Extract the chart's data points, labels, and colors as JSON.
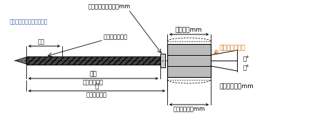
{
  "bg_color": "#ffffff",
  "line_color": "#000000",
  "orange_color": "#cc6600",
  "gray_color": "#aaaaaa",
  "dark_gray": "#555555",
  "text_color_blue": "#3355aa",
  "text_color_orange": "#cc6600",
  "figsize": [
    4.5,
    1.7
  ],
  "dpi": 100,
  "labels": {
    "washer": "ワッシャー外径１４mm",
    "drill": "（ドリル＋不完全ネジ部）",
    "L2": "Ｌ２",
    "d": "ｄ（ネジ外径）",
    "L1": "Ｌ１",
    "neji_length": "（ネジ長さ）",
    "L": "Ｌ",
    "shita": "（首下長さ）",
    "width_27": "２７．５mm",
    "W1212": "Ｗ１／２－１２",
    "angle8_1": "８°",
    "angle8_2": "８°",
    "hex": "六角対辺１７mm",
    "depth": "ねじ深さ１９mm"
  }
}
